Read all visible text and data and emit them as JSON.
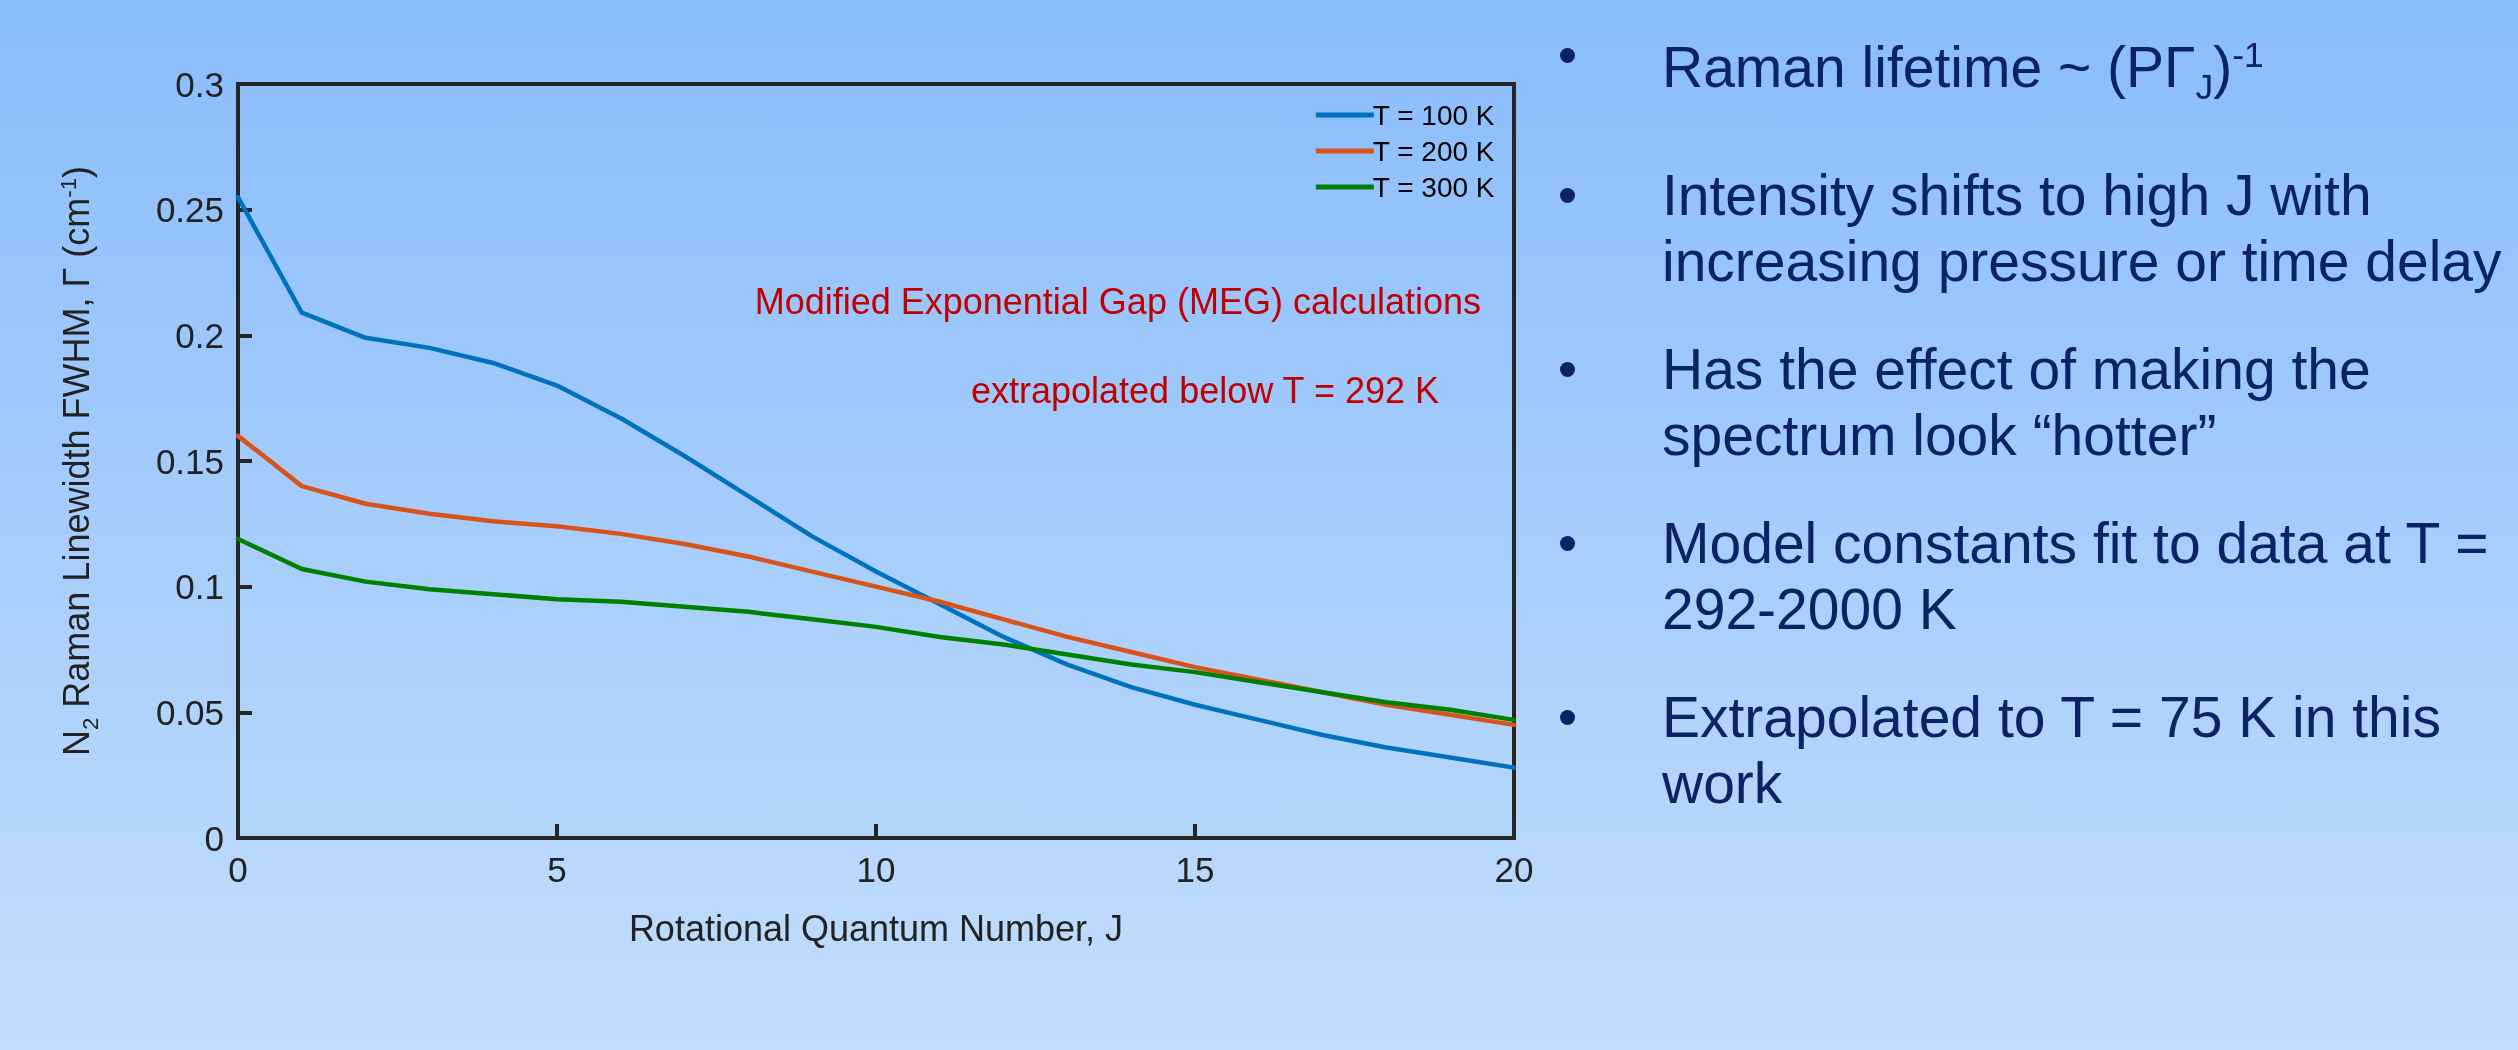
{
  "chart_data": {
    "type": "line",
    "xlabel": "Rotational Quantum Number, J",
    "ylabel": "N$_{2}$ Raman Linewidth FWHM, Γ (cm$^{-1}$)",
    "x": [
      0,
      1,
      2,
      3,
      4,
      5,
      6,
      7,
      8,
      9,
      10,
      11,
      12,
      13,
      14,
      15,
      16,
      17,
      18,
      19,
      20
    ],
    "series": [
      {
        "name": "T = 100 K",
        "color": "#0072bd",
        "values": [
          0.255,
          0.209,
          0.199,
          0.195,
          0.189,
          0.18,
          0.167,
          0.152,
          0.136,
          0.12,
          0.106,
          0.093,
          0.08,
          0.069,
          0.06,
          0.053,
          0.047,
          0.041,
          0.036,
          0.032,
          0.028
        ]
      },
      {
        "name": "T = 200 K",
        "color": "#d95319",
        "values": [
          0.16,
          0.14,
          0.133,
          0.129,
          0.126,
          0.124,
          0.121,
          0.117,
          0.112,
          0.106,
          0.1,
          0.094,
          0.087,
          0.08,
          0.074,
          0.068,
          0.063,
          0.058,
          0.053,
          0.049,
          0.045
        ]
      },
      {
        "name": "T = 300 K",
        "color": "#008000",
        "values": [
          0.119,
          0.107,
          0.102,
          0.099,
          0.097,
          0.095,
          0.094,
          0.092,
          0.09,
          0.087,
          0.084,
          0.08,
          0.077,
          0.073,
          0.069,
          0.066,
          0.062,
          0.058,
          0.054,
          0.051,
          0.047
        ]
      }
    ],
    "xlim": [
      0,
      20
    ],
    "xticks": [
      0,
      5,
      10,
      15,
      20
    ],
    "ylim": [
      0,
      0.3
    ],
    "yticks": [
      0,
      0.05,
      0.1,
      0.15,
      0.2,
      0.25,
      0.3
    ],
    "grid": false,
    "legend": "top right",
    "marker": "none",
    "line_style": "solid",
    "annotations": [
      "Modified Exponential Gap (MEG) calculations",
      "extrapolated below T = 292 K",
      "Raman lifetime ~ (PΓ$_{J}$)$^{-1}$",
      "Intensity shifts to high J with increasing pressure or time delay",
      "Has the effect of making the spectrum look “hotter”",
      "Model constants fit to data at T = 292-2000 K",
      "Extrapolated to T = 75 K in this work"
    ]
  }
}
